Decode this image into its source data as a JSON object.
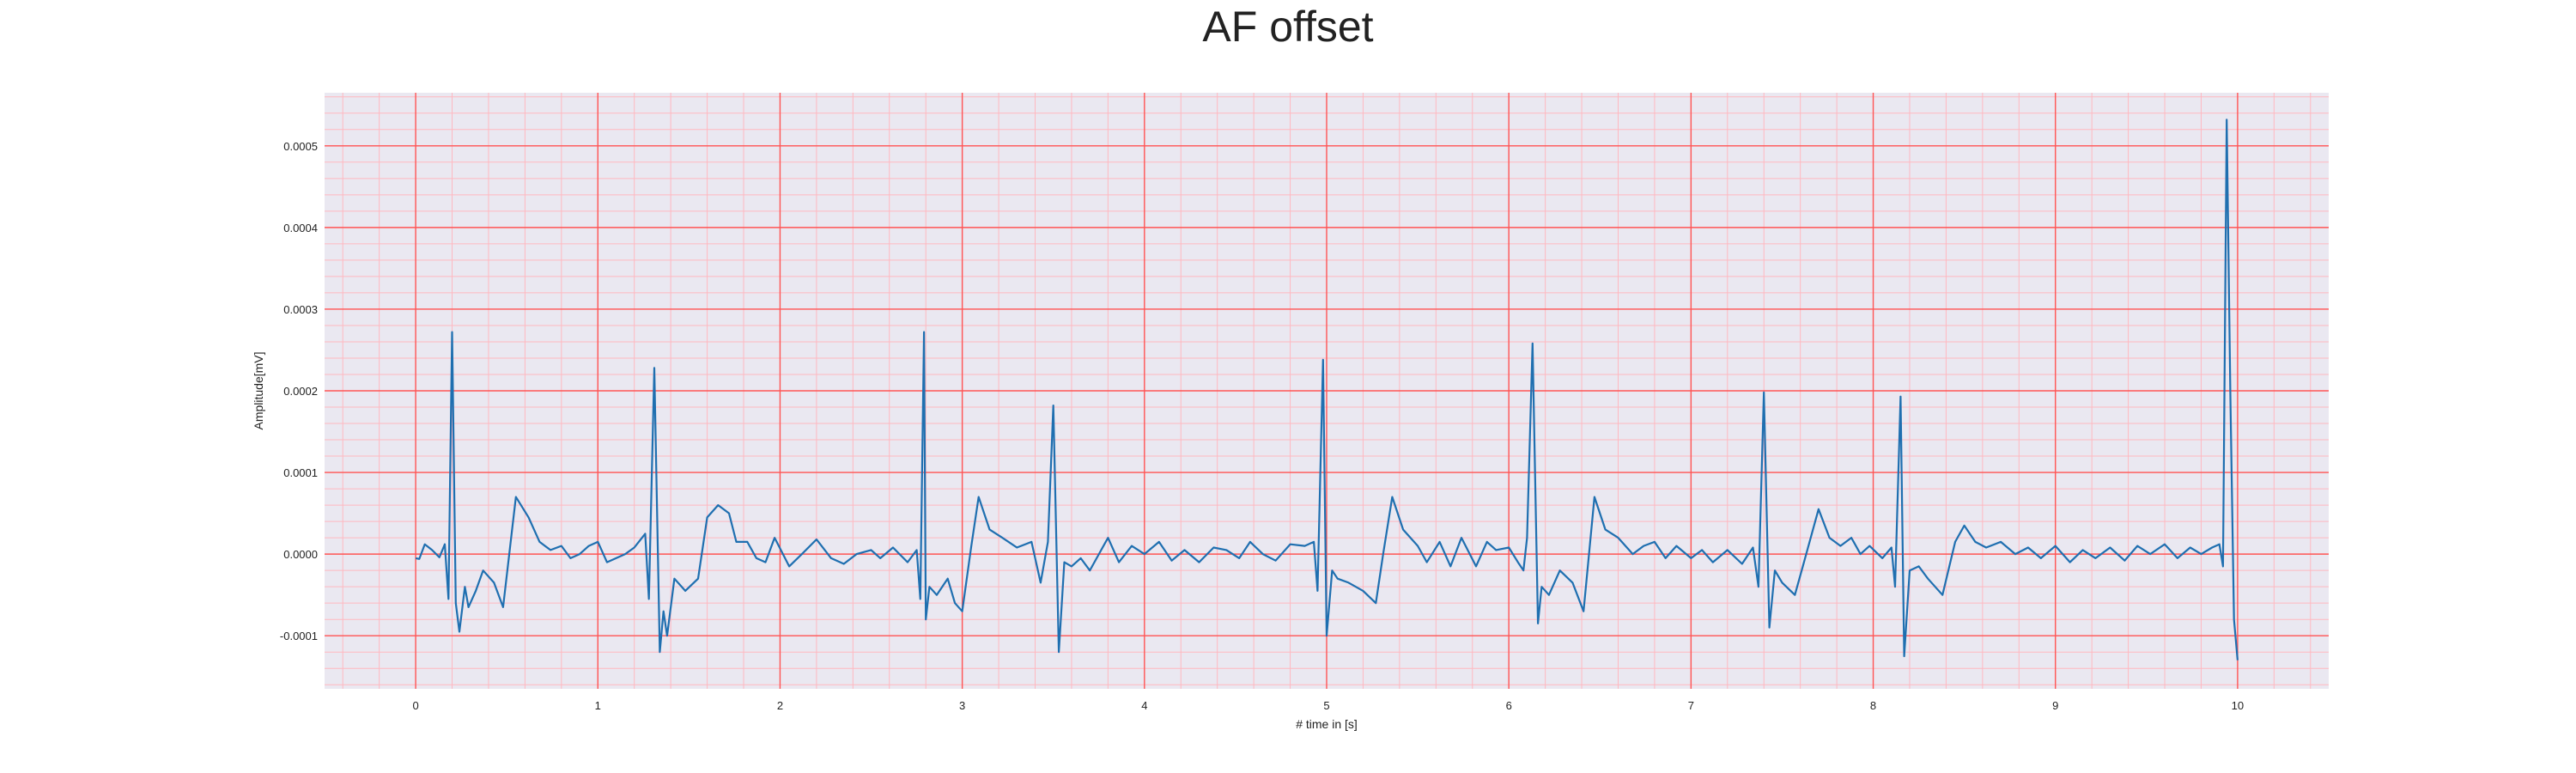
{
  "chart_data": {
    "type": "line",
    "title": "AF offset",
    "xlabel": "# time in [s]",
    "ylabel": "Amplitude[mV]",
    "xlim": [
      -0.5,
      10.5
    ],
    "ylim": [
      -0.000165,
      0.000565
    ],
    "x_ticks": [
      0,
      1,
      2,
      3,
      4,
      5,
      6,
      7,
      8,
      9,
      10
    ],
    "y_ticks": [
      -0.0001,
      0.0,
      0.0001,
      0.0002,
      0.0003,
      0.0004,
      0.0005
    ],
    "y_tick_labels": [
      "-0.0001",
      "0.0000",
      "0.0001",
      "0.0002",
      "0.0003",
      "0.0004",
      "0.0005"
    ],
    "grid": {
      "major": true,
      "minor": true,
      "major_color": "#ff5555",
      "minor_color": "#ffb8c0"
    },
    "background": "#eae8f1",
    "line_color": "#1f6fb0",
    "series": [
      {
        "values": [
          [
            0.0,
            -5e-06
          ],
          [
            0.02,
            -6e-06
          ],
          [
            0.05,
            1.2e-05
          ],
          [
            0.09,
            5e-06
          ],
          [
            0.13,
            -4e-06
          ],
          [
            0.16,
            1.2e-05
          ],
          [
            0.18,
            -5.5e-05
          ],
          [
            0.2,
            0.000272
          ],
          [
            0.22,
            -6e-05
          ],
          [
            0.24,
            -9.5e-05
          ],
          [
            0.27,
            -4e-05
          ],
          [
            0.29,
            -6.5e-05
          ],
          [
            0.33,
            -4.5e-05
          ],
          [
            0.37,
            -2e-05
          ],
          [
            0.43,
            -3.5e-05
          ],
          [
            0.48,
            -6.5e-05
          ],
          [
            0.55,
            7e-05
          ],
          [
            0.62,
            4.5e-05
          ],
          [
            0.68,
            1.5e-05
          ],
          [
            0.74,
            5e-06
          ],
          [
            0.8,
            1e-05
          ],
          [
            0.85,
            -5e-06
          ],
          [
            0.9,
            0.0
          ],
          [
            0.95,
            1e-05
          ],
          [
            1.0,
            1.5e-05
          ],
          [
            1.05,
            -1e-05
          ],
          [
            1.1,
            -5e-06
          ],
          [
            1.15,
            0.0
          ],
          [
            1.2,
            8e-06
          ],
          [
            1.26,
            2.5e-05
          ],
          [
            1.28,
            -5.5e-05
          ],
          [
            1.31,
            0.000228
          ],
          [
            1.34,
            -0.00012
          ],
          [
            1.36,
            -7e-05
          ],
          [
            1.38,
            -0.0001
          ],
          [
            1.42,
            -3e-05
          ],
          [
            1.48,
            -4.5e-05
          ],
          [
            1.55,
            -3e-05
          ],
          [
            1.6,
            4.5e-05
          ],
          [
            1.66,
            6e-05
          ],
          [
            1.72,
            5e-05
          ],
          [
            1.76,
            1.5e-05
          ],
          [
            1.82,
            1.5e-05
          ],
          [
            1.87,
            -5e-06
          ],
          [
            1.92,
            -1e-05
          ],
          [
            1.97,
            2e-05
          ],
          [
            2.05,
            -1.5e-05
          ],
          [
            2.12,
            0.0
          ],
          [
            2.2,
            1.8e-05
          ],
          [
            2.28,
            -5e-06
          ],
          [
            2.35,
            -1.2e-05
          ],
          [
            2.42,
            0.0
          ],
          [
            2.5,
            5e-06
          ],
          [
            2.55,
            -5e-06
          ],
          [
            2.62,
            8e-06
          ],
          [
            2.7,
            -1e-05
          ],
          [
            2.75,
            5e-06
          ],
          [
            2.77,
            -5.5e-05
          ],
          [
            2.79,
            0.000272
          ],
          [
            2.8,
            -8e-05
          ],
          [
            2.82,
            -4e-05
          ],
          [
            2.86,
            -5e-05
          ],
          [
            2.92,
            -3e-05
          ],
          [
            2.96,
            -6e-05
          ],
          [
            3.0,
            -7e-05
          ],
          [
            3.05,
            1e-05
          ],
          [
            3.09,
            7e-05
          ],
          [
            3.15,
            3e-05
          ],
          [
            3.22,
            2e-05
          ],
          [
            3.3,
            8e-06
          ],
          [
            3.38,
            1.5e-05
          ],
          [
            3.43,
            -3.5e-05
          ],
          [
            3.47,
            1.5e-05
          ],
          [
            3.5,
            0.000182
          ],
          [
            3.53,
            -0.00012
          ],
          [
            3.56,
            -1e-05
          ],
          [
            3.6,
            -1.5e-05
          ],
          [
            3.65,
            -5e-06
          ],
          [
            3.7,
            -2e-05
          ],
          [
            3.75,
            0.0
          ],
          [
            3.8,
            2e-05
          ],
          [
            3.86,
            -1e-05
          ],
          [
            3.93,
            1e-05
          ],
          [
            4.0,
            0.0
          ],
          [
            4.08,
            1.5e-05
          ],
          [
            4.15,
            -8e-06
          ],
          [
            4.22,
            5e-06
          ],
          [
            4.3,
            -1e-05
          ],
          [
            4.38,
            8e-06
          ],
          [
            4.45,
            5e-06
          ],
          [
            4.52,
            -5e-06
          ],
          [
            4.58,
            1.5e-05
          ],
          [
            4.65,
            0.0
          ],
          [
            4.72,
            -8e-06
          ],
          [
            4.8,
            1.2e-05
          ],
          [
            4.88,
            1e-05
          ],
          [
            4.93,
            1.5e-05
          ],
          [
            4.95,
            -4.5e-05
          ],
          [
            4.98,
            0.000238
          ],
          [
            5.0,
            -0.0001
          ],
          [
            5.03,
            -2e-05
          ],
          [
            5.06,
            -3e-05
          ],
          [
            5.12,
            -3.5e-05
          ],
          [
            5.2,
            -4.5e-05
          ],
          [
            5.27,
            -6e-05
          ],
          [
            5.31,
            0.0
          ],
          [
            5.36,
            7e-05
          ],
          [
            5.42,
            3e-05
          ],
          [
            5.5,
            1e-05
          ],
          [
            5.55,
            -1e-05
          ],
          [
            5.62,
            1.5e-05
          ],
          [
            5.68,
            -1.5e-05
          ],
          [
            5.74,
            2e-05
          ],
          [
            5.82,
            -1.5e-05
          ],
          [
            5.88,
            1.5e-05
          ],
          [
            5.93,
            5e-06
          ],
          [
            6.0,
            8e-06
          ],
          [
            6.05,
            -1e-05
          ],
          [
            6.08,
            -2e-05
          ],
          [
            6.1,
            2e-05
          ],
          [
            6.13,
            0.000258
          ],
          [
            6.16,
            -8.5e-05
          ],
          [
            6.18,
            -4e-05
          ],
          [
            6.22,
            -5e-05
          ],
          [
            6.28,
            -2e-05
          ],
          [
            6.35,
            -3.5e-05
          ],
          [
            6.41,
            -7e-05
          ],
          [
            6.47,
            7e-05
          ],
          [
            6.53,
            3e-05
          ],
          [
            6.6,
            2e-05
          ],
          [
            6.68,
            0.0
          ],
          [
            6.74,
            1e-05
          ],
          [
            6.8,
            1.5e-05
          ],
          [
            6.86,
            -5e-06
          ],
          [
            6.92,
            1e-05
          ],
          [
            7.0,
            -5e-06
          ],
          [
            7.06,
            5e-06
          ],
          [
            7.12,
            -1e-05
          ],
          [
            7.2,
            5e-06
          ],
          [
            7.28,
            -1.2e-05
          ],
          [
            7.34,
            8e-06
          ],
          [
            7.37,
            -4e-05
          ],
          [
            7.4,
            0.000198
          ],
          [
            7.43,
            -9e-05
          ],
          [
            7.46,
            -2e-05
          ],
          [
            7.5,
            -3.5e-05
          ],
          [
            7.57,
            -5e-05
          ],
          [
            7.62,
            -1e-05
          ],
          [
            7.7,
            5.5e-05
          ],
          [
            7.76,
            2e-05
          ],
          [
            7.82,
            1e-05
          ],
          [
            7.88,
            2e-05
          ],
          [
            7.93,
            0.0
          ],
          [
            7.98,
            1e-05
          ],
          [
            8.05,
            -5e-06
          ],
          [
            8.1,
            8e-06
          ],
          [
            8.12,
            -4e-05
          ],
          [
            8.15,
            0.000193
          ],
          [
            8.17,
            -0.000125
          ],
          [
            8.2,
            -2e-05
          ],
          [
            8.25,
            -1.5e-05
          ],
          [
            8.3,
            -3e-05
          ],
          [
            8.38,
            -5e-05
          ],
          [
            8.45,
            1.5e-05
          ],
          [
            8.5,
            3.5e-05
          ],
          [
            8.56,
            1.5e-05
          ],
          [
            8.62,
            8e-06
          ],
          [
            8.7,
            1.5e-05
          ],
          [
            8.78,
            0.0
          ],
          [
            8.85,
            8e-06
          ],
          [
            8.92,
            -5e-06
          ],
          [
            9.0,
            1e-05
          ],
          [
            9.08,
            -1e-05
          ],
          [
            9.15,
            5e-06
          ],
          [
            9.22,
            -5e-06
          ],
          [
            9.3,
            8e-06
          ],
          [
            9.38,
            -8e-06
          ],
          [
            9.45,
            1e-05
          ],
          [
            9.52,
            0.0
          ],
          [
            9.6,
            1.2e-05
          ],
          [
            9.67,
            -5e-06
          ],
          [
            9.74,
            8e-06
          ],
          [
            9.8,
            0.0
          ],
          [
            9.86,
            8e-06
          ],
          [
            9.9,
            1.2e-05
          ],
          [
            9.92,
            -1.5e-05
          ],
          [
            9.94,
            0.000532
          ],
          [
            9.96,
            0.0002
          ],
          [
            9.98,
            -8e-05
          ],
          [
            10.0,
            -0.00013
          ]
        ]
      }
    ]
  }
}
